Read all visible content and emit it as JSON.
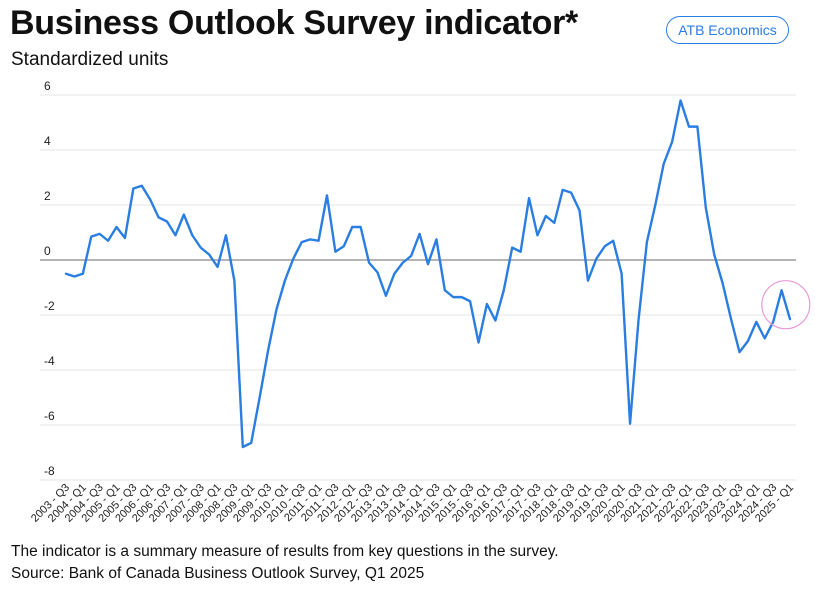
{
  "header": {
    "title": "Business Outlook Survey indicator*",
    "subtitle": "Standardized units",
    "badge": "ATB Economics"
  },
  "footer": {
    "note": "The indicator is a summary measure of results from key questions in the survey.",
    "source": "Source: Bank of Canada Business Outlook Survey, Q1 2025"
  },
  "colors": {
    "line": "#2a7de1",
    "zero_line": "#888888",
    "grid": "#e6e6e6",
    "highlight_circle": "#e89ad6"
  },
  "chart_data": {
    "type": "line",
    "title": "Business Outlook Survey indicator*",
    "ylabel": "Standardized units",
    "xlabel": "",
    "ylim": [
      -8,
      6
    ],
    "yticks": [
      6,
      4,
      2,
      0,
      -2,
      -4,
      -6,
      -8
    ],
    "grid": true,
    "x_tick_labels": [
      "2003 - Q3",
      "2004 - Q1",
      "2004 - Q3",
      "2005 - Q1",
      "2005 - Q3",
      "2006 - Q1",
      "2006 - Q3",
      "2007 - Q1",
      "2007 - Q3",
      "2008 - Q1",
      "2008 - Q3",
      "2009 - Q1",
      "2009 - Q3",
      "2010 - Q1",
      "2010 - Q3",
      "2011 - Q1",
      "2011 - Q3",
      "2012 - Q1",
      "2012 - Q3",
      "2013 - Q1",
      "2013 - Q3",
      "2014 - Q1",
      "2014 - Q3",
      "2015 - Q1",
      "2015 - Q3",
      "2016 - Q1",
      "2016 - Q3",
      "2017 - Q1",
      "2017 - Q3",
      "2018 - Q1",
      "2018 - Q3",
      "2019 - Q1",
      "2019 - Q3",
      "2020 - Q1",
      "2020 - Q3",
      "2021 - Q1",
      "2021 - Q3",
      "2022 - Q1",
      "2022 - Q3",
      "2023 - Q1",
      "2023 - Q3",
      "2024 - Q1",
      "2024 - Q3",
      "2025 - Q1"
    ],
    "highlight": "2025 - Q1",
    "series": [
      {
        "name": "Business Outlook Survey indicator",
        "values": [
          -0.5,
          -0.6,
          -0.5,
          0.85,
          0.95,
          0.7,
          1.2,
          0.8,
          2.6,
          2.7,
          2.2,
          1.55,
          1.4,
          0.9,
          1.65,
          0.9,
          0.45,
          0.2,
          -0.25,
          0.9,
          -0.75,
          -6.8,
          -6.65,
          -5.0,
          -3.3,
          -1.8,
          -0.75,
          0.05,
          0.65,
          0.75,
          0.7,
          2.35,
          0.3,
          0.5,
          1.2,
          1.2,
          -0.1,
          -0.45,
          -1.3,
          -0.5,
          -0.1,
          0.15,
          0.95,
          -0.15,
          0.75,
          -1.1,
          -1.35,
          -1.35,
          -1.5,
          -3.0,
          -1.6,
          -2.2,
          -1.1,
          0.45,
          0.3,
          2.25,
          0.9,
          1.6,
          1.35,
          2.55,
          2.45,
          1.8,
          -0.75,
          0.05,
          0.5,
          0.7,
          -0.5,
          -5.95,
          -2.2,
          0.65,
          2.0,
          3.5,
          4.3,
          5.8,
          4.85,
          4.85,
          1.9,
          0.2,
          -0.85,
          -2.15,
          -3.35,
          -2.95,
          -2.25,
          -2.85,
          -2.25,
          -1.1,
          -2.15
        ]
      }
    ]
  }
}
